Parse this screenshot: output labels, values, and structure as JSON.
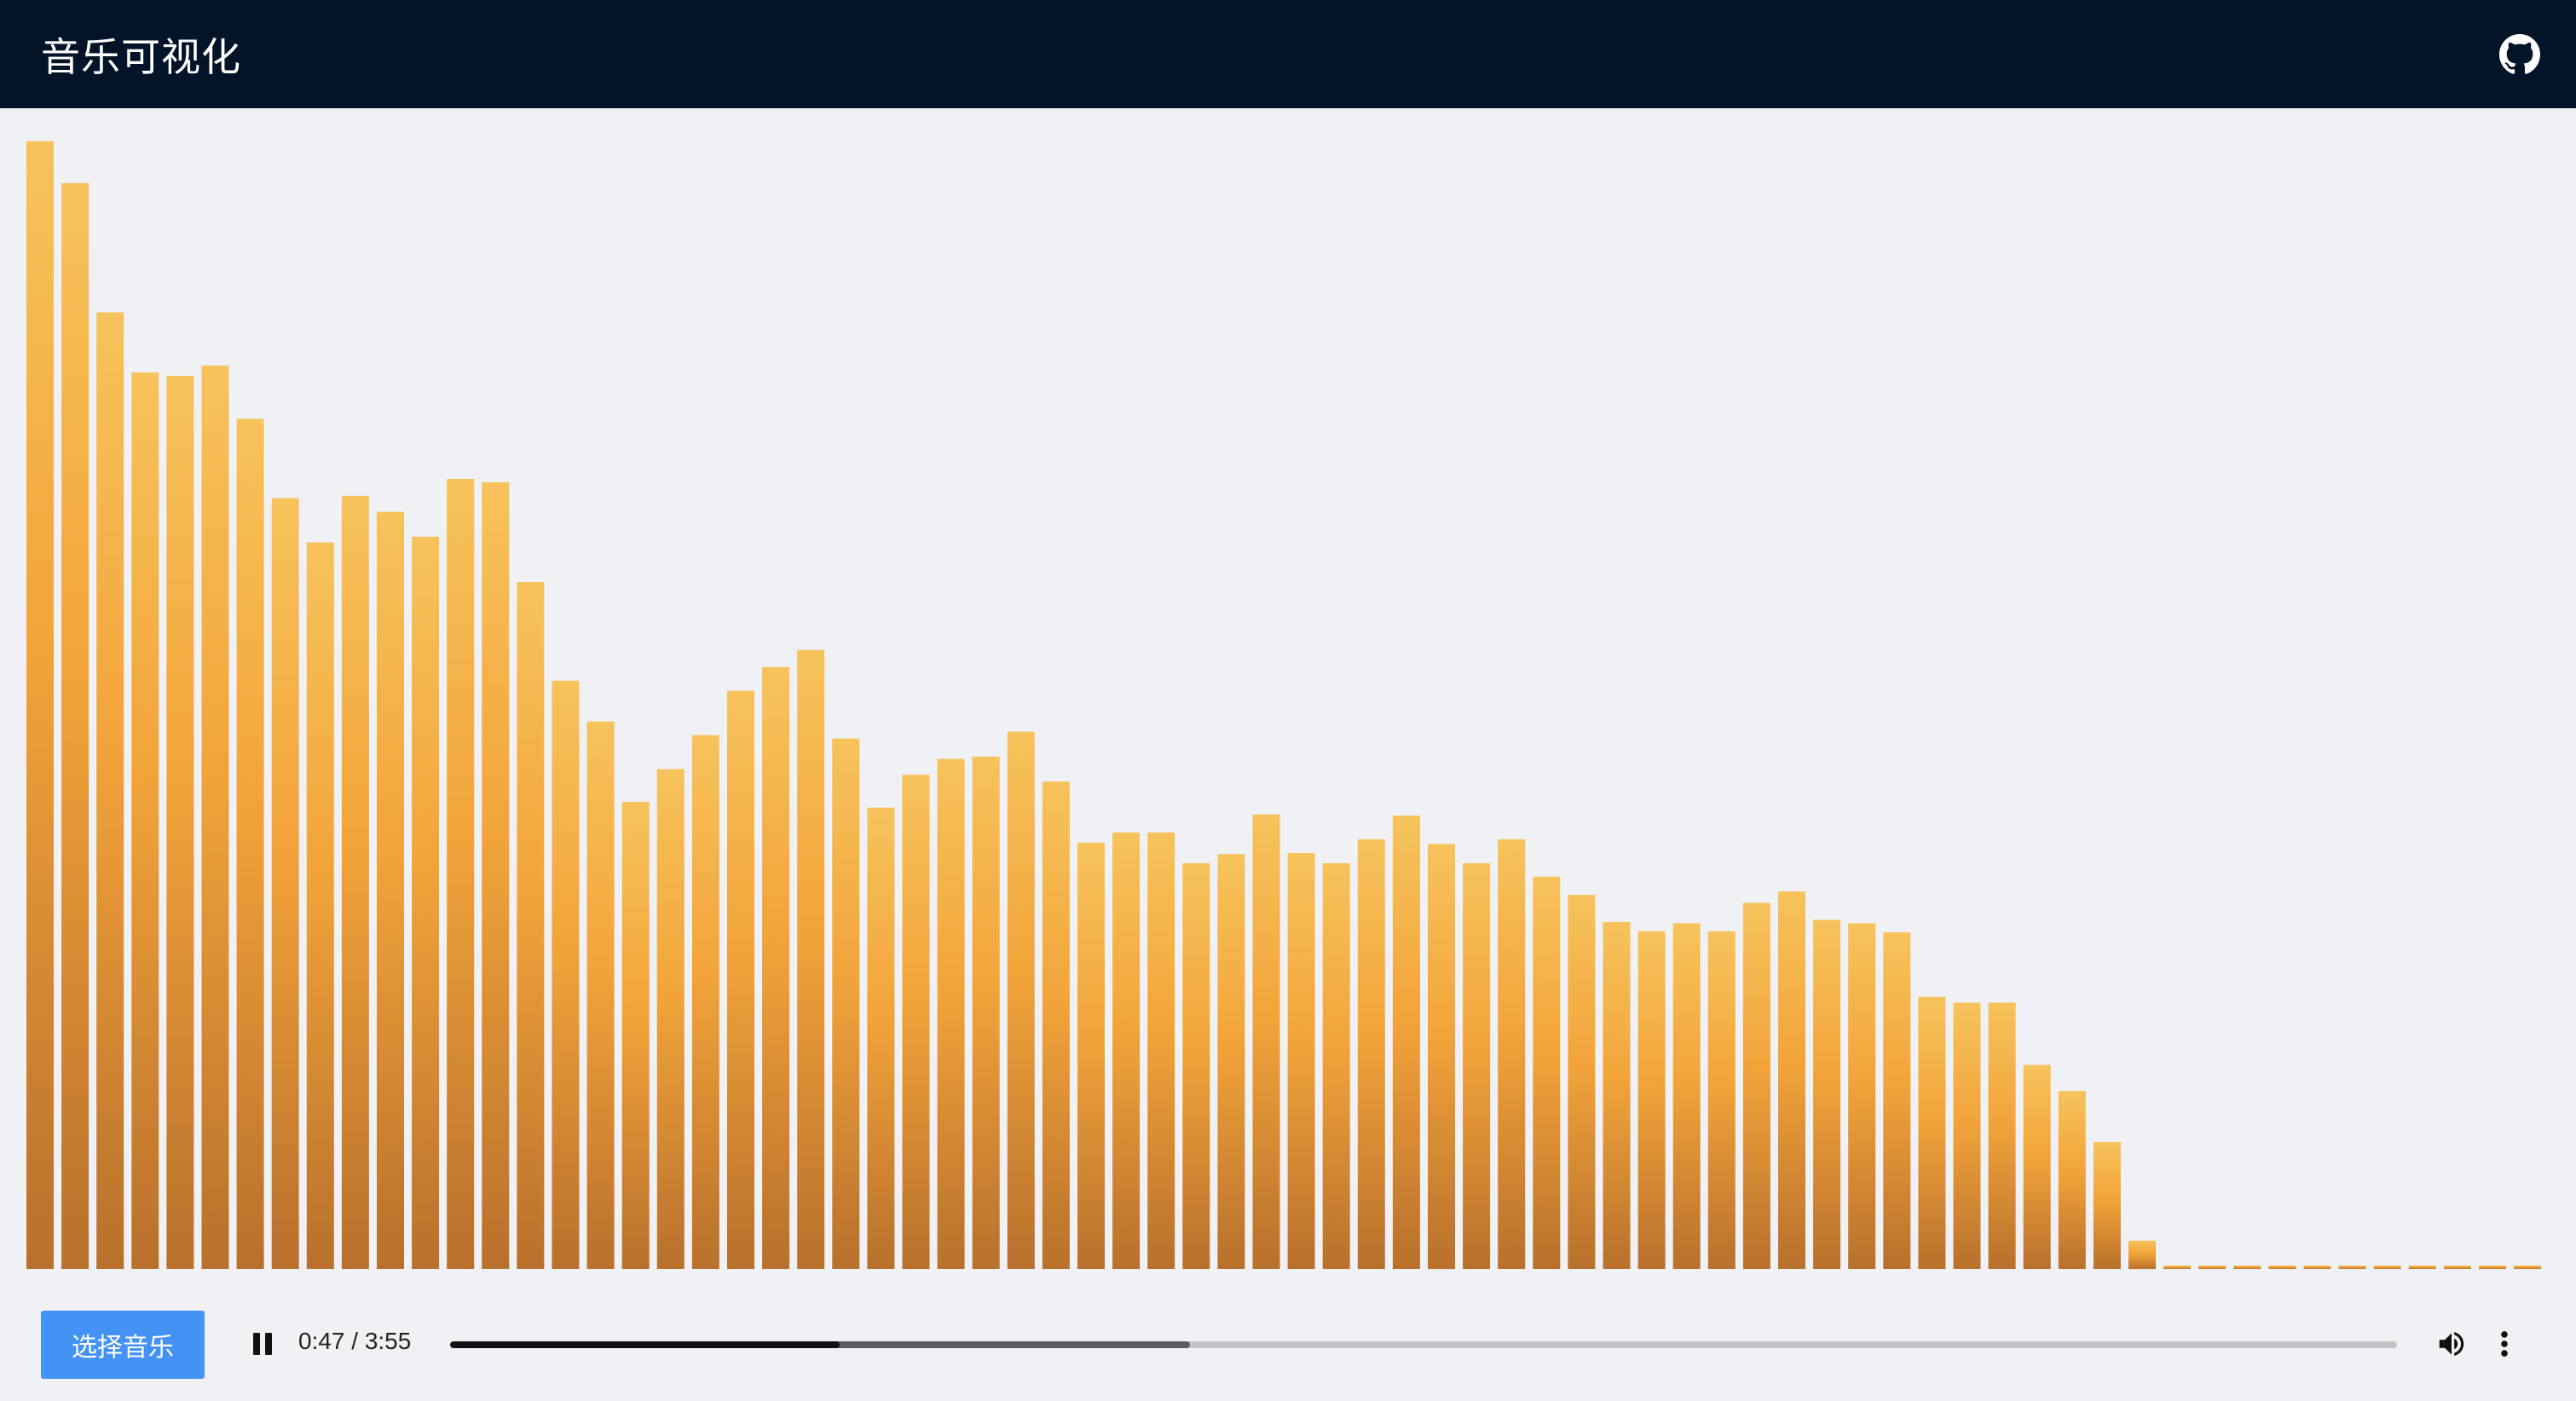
{
  "header": {
    "title": "音乐可视化",
    "github_icon": "github-icon"
  },
  "visualizer": {
    "levels": [
      0.995,
      0.958,
      0.844,
      0.791,
      0.788,
      0.797,
      0.75,
      0.68,
      0.641,
      0.682,
      0.668,
      0.646,
      0.697,
      0.694,
      0.606,
      0.519,
      0.483,
      0.412,
      0.441,
      0.471,
      0.51,
      0.531,
      0.546,
      0.468,
      0.407,
      0.436,
      0.45,
      0.452,
      0.474,
      0.43,
      0.376,
      0.385,
      0.385,
      0.358,
      0.366,
      0.401,
      0.367,
      0.358,
      0.379,
      0.4,
      0.375,
      0.358,
      0.379,
      0.346,
      0.33,
      0.306,
      0.298,
      0.305,
      0.298,
      0.323,
      0.333,
      0.308,
      0.305,
      0.297,
      0.24,
      0.235,
      0.235,
      0.18,
      0.157,
      0.112,
      0.025,
      0.003,
      0.003,
      0.003,
      0.003,
      0.003,
      0.003,
      0.003,
      0.003,
      0.003,
      0.003,
      0.003
    ],
    "gradient_top": "#f7c35c",
    "gradient_mid": "#f2a43a",
    "gradient_bottom": "#b8702c"
  },
  "player": {
    "select_label": "选择音乐",
    "pause_icon": "pause-icon",
    "current_time": "0:47",
    "separator": "/",
    "duration": "3:55",
    "time_text": "0:47 / 3:55",
    "progress": 0.2,
    "buffered": 0.38,
    "volume_icon": "volume-icon",
    "more_icon": "more-options-icon"
  },
  "colors": {
    "header_bg": "#031428",
    "page_bg": "#eff1f5",
    "button_bg": "#4592f5"
  }
}
